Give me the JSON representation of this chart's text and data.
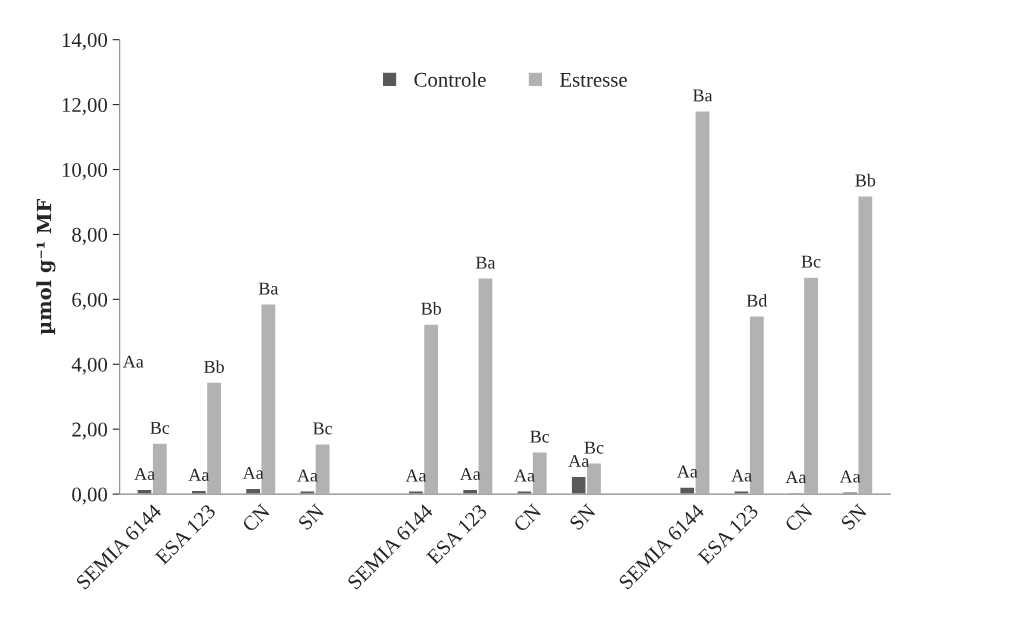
{
  "chart_data": {
    "type": "bar",
    "ylabel": "µmol g⁻¹ MF",
    "categories": [
      "SEMIA 6144",
      "ESA 123",
      "CN",
      "SN",
      null,
      "SEMIA 6144",
      "ESA 123",
      "CN",
      "SN",
      null,
      "SEMIA 6144",
      "ESA 123",
      "CN",
      "SN"
    ],
    "series": [
      {
        "name": "Controle",
        "color": "#595959",
        "values": [
          0.15,
          0.12,
          0.18,
          0.1,
          null,
          0.1,
          0.15,
          0.1,
          0.55,
          null,
          0.22,
          0.1,
          0.05,
          0.07
        ],
        "value_labels": [
          "Aa",
          "Aa",
          "Aa",
          "Aa",
          null,
          "Aa",
          "Aa",
          "Aa",
          "Aa",
          null,
          "Aa",
          "Aa",
          "Aa",
          "Aa"
        ]
      },
      {
        "name": "Estresse",
        "color": "#b2b2b2",
        "values": [
          1.57,
          3.45,
          5.86,
          1.55,
          null,
          5.24,
          6.66,
          1.3,
          0.96,
          null,
          11.81,
          5.49,
          6.69,
          9.19
        ],
        "value_labels": [
          "Bc",
          "Bb",
          "Ba",
          "Bc",
          null,
          "Bb",
          "Ba",
          "Bc",
          "Bc",
          null,
          "Ba",
          "Bd",
          "Bc",
          "Bb"
        ]
      }
    ],
    "ylim": [
      0,
      14
    ],
    "yticks": [
      {
        "value": 0,
        "label": "0,00"
      },
      {
        "value": 2,
        "label": "2,00"
      },
      {
        "value": 4,
        "label": "4,00"
      },
      {
        "value": 6,
        "label": "6,00"
      },
      {
        "value": 8,
        "label": "8,00"
      },
      {
        "value": 10,
        "label": "10,00"
      },
      {
        "value": 12,
        "label": "12,00"
      },
      {
        "value": 14,
        "label": "14,00"
      }
    ],
    "annotations": [
      "Aa"
    ],
    "legend": "top",
    "grid": false
  }
}
